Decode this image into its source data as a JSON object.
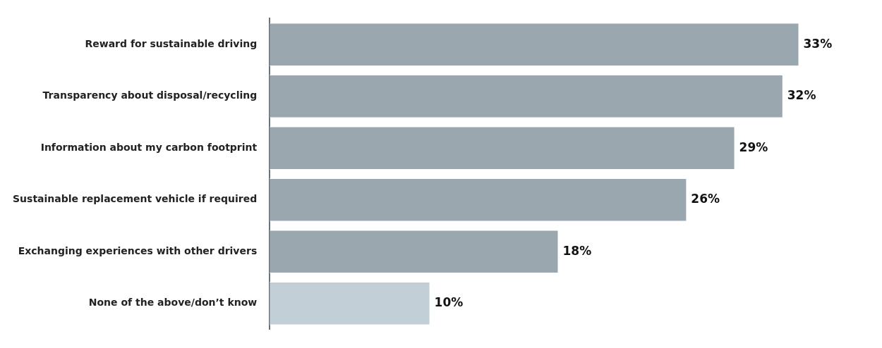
{
  "chart_data": {
    "type": "bar",
    "orientation": "horizontal",
    "categories": [
      "Reward for sustainable driving",
      "Transparency about disposal/recycling",
      "Information about my carbon footprint",
      "Sustainable replacement vehicle if required",
      "Exchanging experiences with other drivers",
      "None of the above/don’t know"
    ],
    "values": [
      33,
      32,
      29,
      26,
      18,
      10
    ],
    "colors": [
      "#9ba7af",
      "#9ba7af",
      "#9ba7af",
      "#9ba7af",
      "#9ba7af",
      "#c3cfd6"
    ],
    "value_labels": [
      "33%",
      "32%",
      "29%",
      "26%",
      "18%",
      "10%"
    ],
    "grid": false,
    "legend": false
  }
}
